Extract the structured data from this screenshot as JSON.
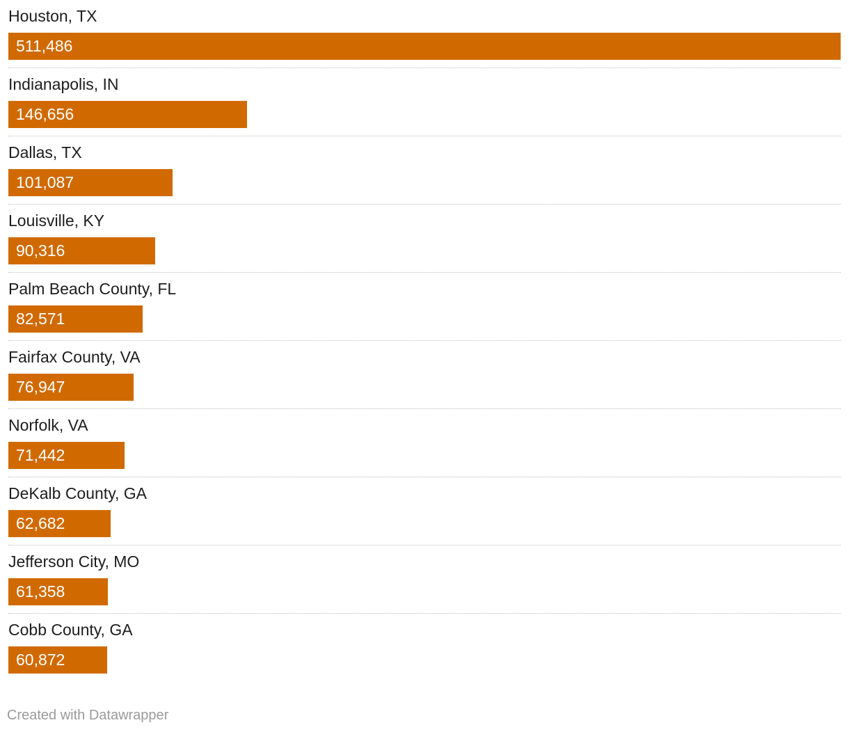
{
  "chart_data": {
    "type": "bar",
    "orientation": "horizontal",
    "categories": [
      "Houston, TX",
      "Indianapolis, IN",
      "Dallas, TX",
      "Louisville, KY",
      "Palm Beach County, FL",
      "Fairfax County, VA",
      "Norfolk, VA",
      "DeKalb County, GA",
      "Jefferson City, MO",
      "Cobb County, GA"
    ],
    "values": [
      511486,
      146656,
      101087,
      90316,
      82571,
      76947,
      71442,
      62682,
      61358,
      60872
    ],
    "value_labels": [
      "511,486",
      "146,656",
      "101,087",
      "90,316",
      "82,571",
      "76,947",
      "71,442",
      "62,682",
      "61,358",
      "60,872"
    ],
    "title": "",
    "xlabel": "",
    "ylabel": "",
    "xlim": [
      0,
      511486
    ],
    "grid": false,
    "legend": "none",
    "bar_color": "#d06a00",
    "value_label_color": "#ffffff",
    "separator_color": "#bdbdbd"
  },
  "footer": {
    "credit": "Created with Datawrapper"
  }
}
